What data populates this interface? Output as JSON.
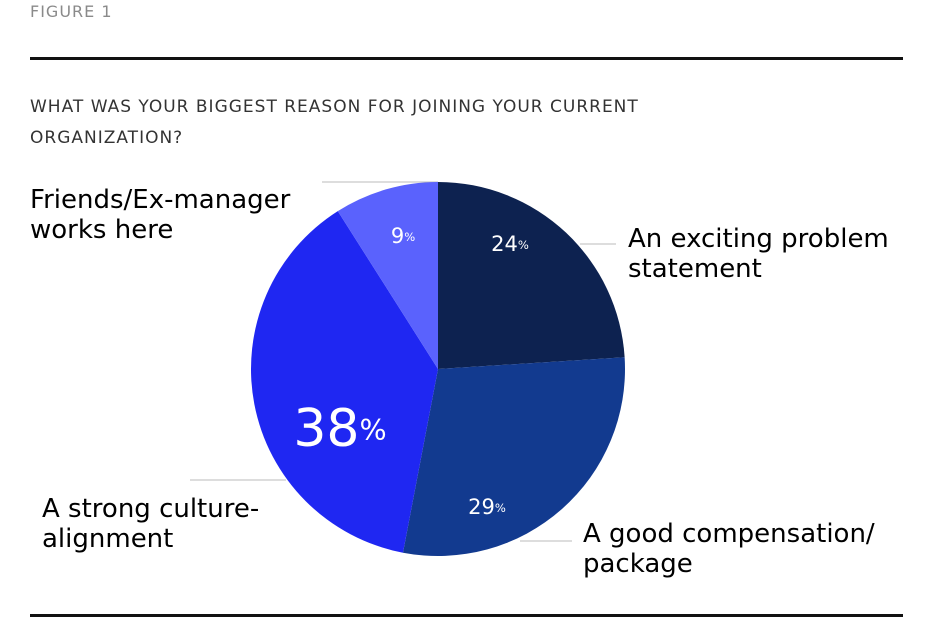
{
  "chart_data": {
    "type": "pie",
    "figure_label": "FIGURE 1",
    "title": "WHAT WAS YOUR BIGGEST REASON FOR JOINING YOUR CURRENT ORGANIZATION?",
    "categories": [
      "An exciting problem statement",
      "A good compensation/ package",
      "A strong culture-alignment",
      "Friends/Ex-manager works here"
    ],
    "values": [
      24,
      29,
      38,
      9
    ],
    "value_labels": [
      "24%",
      "29%",
      "38%",
      "9%"
    ],
    "colors": [
      "#0d2250",
      "#123a8f",
      "#1f27f2",
      "#5a62fd"
    ]
  }
}
